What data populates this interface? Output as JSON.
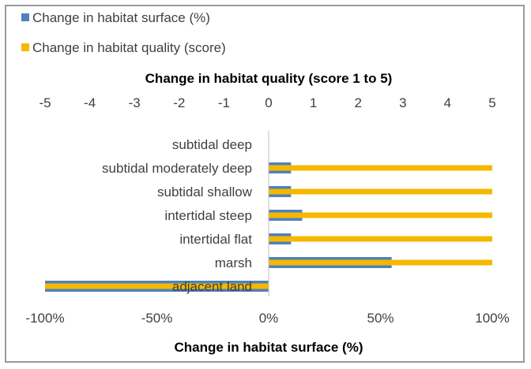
{
  "chart_data": {
    "type": "bar",
    "orientation": "horizontal",
    "categories": [
      "subtidal deep",
      "subtidal moderately deep",
      "subtidal shallow",
      "intertidal steep",
      "intertidal flat",
      "marsh",
      "adjacent land"
    ],
    "series": [
      {
        "name": "Change in habitat surface (%)",
        "axis": "bottom",
        "color": "#4f81bd",
        "values": [
          0,
          10,
          10,
          15,
          10,
          55,
          -100
        ]
      },
      {
        "name": "Change in habitat quality (score)",
        "axis": "top",
        "color": "#f5b800",
        "values": [
          0,
          5,
          5,
          5,
          5,
          5,
          -5
        ]
      }
    ],
    "top_axis": {
      "title": "Change in habitat quality (score 1 to 5)",
      "range": [
        -5,
        5
      ],
      "ticks": [
        "-5",
        "-4",
        "-3",
        "-2",
        "-1",
        "0",
        "1",
        "2",
        "3",
        "4",
        "5"
      ]
    },
    "bottom_axis": {
      "title": "Change in habitat surface (%)",
      "range": [
        -100,
        100
      ],
      "ticks": [
        "-100%",
        "-50%",
        "0%",
        "50%",
        "100%"
      ]
    },
    "legend": "top-left",
    "grid": false
  }
}
